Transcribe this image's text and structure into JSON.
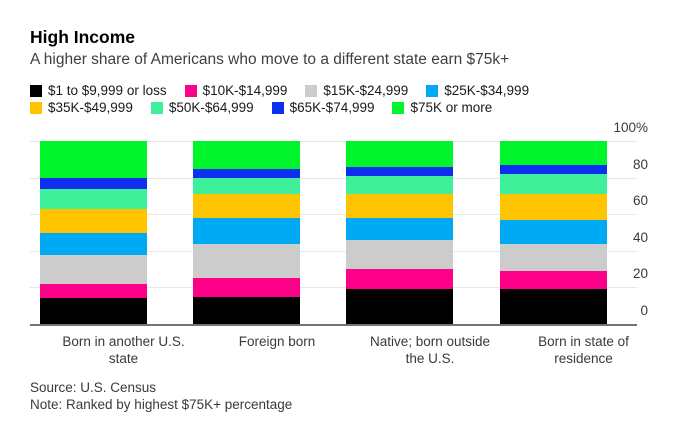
{
  "header": {
    "title": "High Income",
    "subtitle": "A higher share of Americans who move to a different state earn $75k+"
  },
  "chart_data": {
    "type": "bar",
    "stacked": true,
    "unit": "percent",
    "title": "High Income",
    "subtitle": "A higher share of Americans who move to a different state earn $75k+",
    "categories": [
      "Born in another U.S.\nstate",
      "Foreign born",
      "Native; born outside\nthe U.S.",
      "Born in state of\nresidence"
    ],
    "series": [
      {
        "name": "$1 to $9,999 or loss",
        "color": "#000000",
        "values": [
          14,
          15,
          19,
          19
        ]
      },
      {
        "name": "$10K-$14,999",
        "color": "#ff0088",
        "values": [
          8,
          10,
          11,
          10
        ]
      },
      {
        "name": "$15K-$24,999",
        "color": "#cccccc",
        "values": [
          16,
          19,
          16,
          15
        ]
      },
      {
        "name": "$25K-$34,999",
        "color": "#00a9f4",
        "values": [
          12,
          14,
          12,
          13
        ]
      },
      {
        "name": "$35K-$49,999",
        "color": "#ffc400",
        "values": [
          13,
          13,
          13,
          14
        ]
      },
      {
        "name": "$50K-$64,999",
        "color": "#3ff09b",
        "values": [
          11,
          9,
          10,
          11
        ]
      },
      {
        "name": "$65K-$74,999",
        "color": "#0f2ff0",
        "values": [
          6,
          5,
          5,
          5
        ]
      },
      {
        "name": "$75K or more",
        "color": "#00f52c",
        "values": [
          20,
          15,
          14,
          13
        ]
      }
    ],
    "ylim": [
      0,
      100
    ],
    "yticks": {
      "values": [
        0,
        20,
        40,
        60,
        80,
        100
      ],
      "labels": [
        "0",
        "20",
        "40",
        "60",
        "80",
        "100%"
      ]
    },
    "legend_position": "top",
    "grid": "horizontal"
  },
  "footer": {
    "source": "Source: U.S. Census",
    "note": "Note: Ranked by highest $75K+ percentage"
  }
}
